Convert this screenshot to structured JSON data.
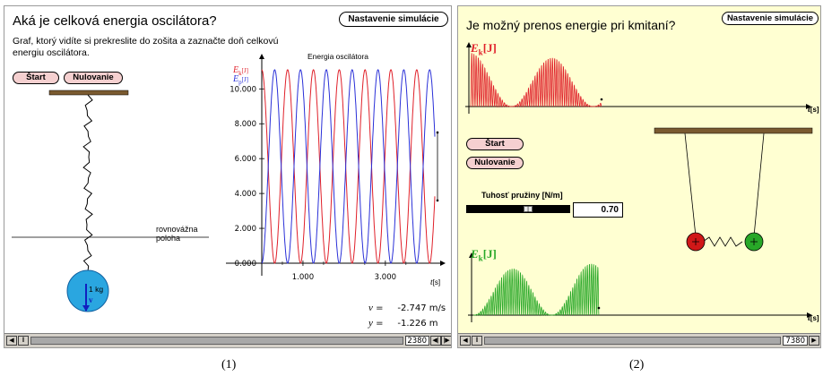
{
  "panel1": {
    "title": "Aká je celková energia oscilátora?",
    "settings_label": "Nastavenie simulácie",
    "description": "Graf, ktorý vidíte si prekreslite do zošita a zaznačte doň celkovú energiu oscilátora.",
    "start_label": "Štart",
    "reset_label": "Nulovanie",
    "equilibrium_line1": "rovnovážna",
    "equilibrium_line2": "poloha",
    "mass_label": "1 kg",
    "velocity_arrow_label": "v",
    "graph_title": "Energia oscilátora",
    "ek_label": "E",
    "ek_sub": "k",
    "ek_unit": "[J]",
    "ep_label": "E",
    "ep_sub": "p",
    "ep_unit": "[J]",
    "time_axis_label": "t",
    "time_axis_unit": "[s]",
    "velocity_readout_symbol": "v",
    "velocity_readout_value": "-2.747 m/s",
    "position_readout_symbol": "y",
    "position_readout_value": "-1.226 m",
    "frame_counter": "2380",
    "caption": "(1)"
  },
  "panel2": {
    "title": "Je možný prenos energie pri kmitaní?",
    "settings_label": "Nastavenie simulácie",
    "start_label": "Štart",
    "reset_label": "Nulovanie",
    "stiffness_label": "Tuhosť pružiny [N/m]",
    "stiffness_value": "0.70",
    "slider_fraction": 0.6,
    "ek_top_label": "E",
    "ek_top_sub": "k",
    "ek_top_unit": "[J]",
    "ek_bottom_label": "E",
    "ek_bottom_sub": "k",
    "ek_bottom_unit": "[J]",
    "time_axis_top": "t",
    "time_axis_top_unit": "[s]",
    "time_axis_bottom": "t",
    "time_axis_bottom_unit": "[s]",
    "frame_counter": "7380",
    "caption": "(2)"
  },
  "colors": {
    "kinetic": "#e0202a",
    "potential": "#2a30d8",
    "green_ball": "#28a828",
    "red_ball": "#d01818",
    "mass_ball": "#2aa6e0",
    "panel2_bg": "#ffffd2",
    "ceiling": "#7a5a30"
  },
  "chart_data": [
    {
      "type": "line",
      "title": "Energia oscilátora",
      "xlabel": "t [s]",
      "ylabel": "Ek [J], Ep [J]",
      "x_ticks": [
        "1.000",
        "3.000"
      ],
      "y_ticks": [
        "0.000",
        "2.000",
        "4.000",
        "6.000",
        "8.000",
        "10.000"
      ],
      "ylim": [
        0,
        11.3
      ],
      "xlim": [
        0,
        4.2
      ],
      "series": [
        {
          "name": "Ek",
          "color": "#e0202a",
          "amplitude": 11.1,
          "cycles": 6.7,
          "phase": "max at t=0"
        },
        {
          "name": "Ep",
          "color": "#2a30d8",
          "amplitude": 11.1,
          "cycles": 6.7,
          "phase": "min at t=0"
        }
      ]
    },
    {
      "type": "line",
      "ylabel": "Ek [J]",
      "xlabel": "t [s]",
      "series": [
        {
          "name": "Ek",
          "color": "#e0202a",
          "envelope": "beats, decaying"
        }
      ]
    },
    {
      "type": "line",
      "ylabel": "Ek [J]",
      "xlabel": "t [s]",
      "series": [
        {
          "name": "Ek",
          "color": "#28a828",
          "envelope": "beats, growing"
        }
      ]
    }
  ]
}
